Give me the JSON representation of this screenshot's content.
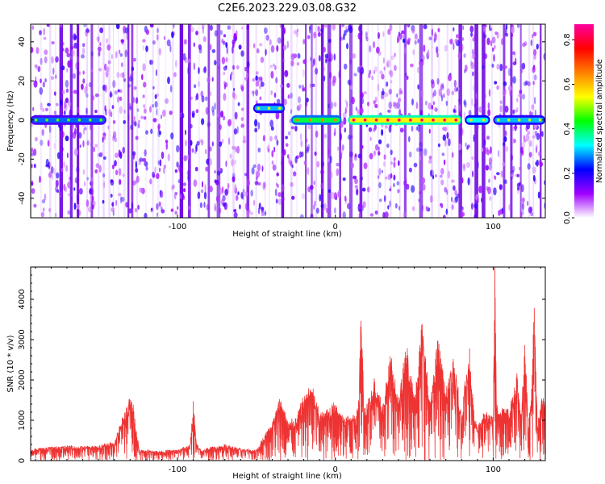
{
  "title": "C2E6.2023.229.03.08.G32",
  "colors": {
    "series": "#ee3333",
    "axis": "#000000"
  },
  "chart_data": [
    {
      "type": "heatmap",
      "title": "C2E6.2023.229.03.08.G32",
      "xlabel": "Height of straight line (km)",
      "ylabel": "Frequency (Hz)",
      "xlim": [
        -193,
        133
      ],
      "ylim": [
        -50,
        49
      ],
      "xticks": [
        -100,
        0,
        100
      ],
      "yticks": [
        -40,
        -20,
        0,
        20,
        40
      ],
      "grid": false,
      "colorbar": {
        "label": "Normalized spectral amplitude",
        "range": [
          0,
          0.87
        ],
        "ticks": [
          0.0,
          0.2,
          0.4,
          0.6,
          0.8
        ],
        "colormap": [
          "#ffffff",
          "#a000ff",
          "#0000ff",
          "#00ffff",
          "#00ff00",
          "#ffff00",
          "#ff8000",
          "#ff0000",
          "#ff00a0"
        ]
      },
      "features": [
        {
          "x_start": -193,
          "x_end": -145,
          "freq": 0,
          "level": 0.35
        },
        {
          "x_start": -52,
          "x_end": -32,
          "freq": 6,
          "level": 0.4
        },
        {
          "x_start": -28,
          "x_end": 4,
          "freq": 0,
          "level": 0.55
        },
        {
          "x_start": 8,
          "x_end": 80,
          "freq": 0,
          "level": 0.75
        },
        {
          "x_start": 82,
          "x_end": 98,
          "freq": 0,
          "level": 0.45
        },
        {
          "x_start": 100,
          "x_end": 133,
          "freq": 0,
          "level": 0.4
        }
      ]
    },
    {
      "type": "line",
      "xlabel": "Height of straight line (km)",
      "ylabel": "SNR (10 * v/v)",
      "xlim": [
        -193,
        133
      ],
      "ylim": [
        0,
        4800
      ],
      "xticks": [
        -100,
        0,
        100
      ],
      "yticks": [
        0,
        1000,
        2000,
        3000,
        4000
      ],
      "grid": false,
      "series": [
        {
          "x": [
            -193,
            -180,
            -170,
            -160,
            -150,
            -140,
            -135,
            -130,
            -128,
            -126,
            -124,
            -122,
            -118,
            -110,
            -100,
            -92,
            -90,
            -88,
            -85,
            -80,
            -70,
            -60,
            -50,
            -45,
            -40,
            -35,
            -30,
            -25,
            -20,
            -15,
            -10,
            -5,
            0,
            5,
            10,
            13,
            15,
            16,
            17,
            18,
            20,
            25,
            30,
            35,
            40,
            45,
            50,
            55,
            60,
            65,
            70,
            75,
            80,
            85,
            88,
            90,
            95,
            100,
            101,
            102,
            103,
            105,
            110,
            115,
            118,
            120,
            122,
            124,
            126,
            128,
            130,
            133
          ],
          "values": [
            280,
            320,
            350,
            330,
            350,
            450,
            1000,
            1500,
            1300,
            700,
            260,
            250,
            240,
            230,
            260,
            380,
            1400,
            400,
            250,
            300,
            380,
            280,
            250,
            600,
            900,
            1500,
            900,
            1000,
            1500,
            1800,
            1100,
            1200,
            1400,
            1000,
            1100,
            1000,
            1600,
            3600,
            3200,
            1200,
            1400,
            1900,
            1300,
            2500,
            1400,
            2800,
            1500,
            3300,
            1300,
            2900,
            1600,
            2400,
            1100,
            2700,
            1000,
            800,
            1200,
            1000,
            4800,
            1500,
            1100,
            1300,
            1200,
            2100,
            1000,
            3200,
            800,
            1500,
            3700,
            800,
            1400,
            1500
          ]
        }
      ]
    }
  ]
}
